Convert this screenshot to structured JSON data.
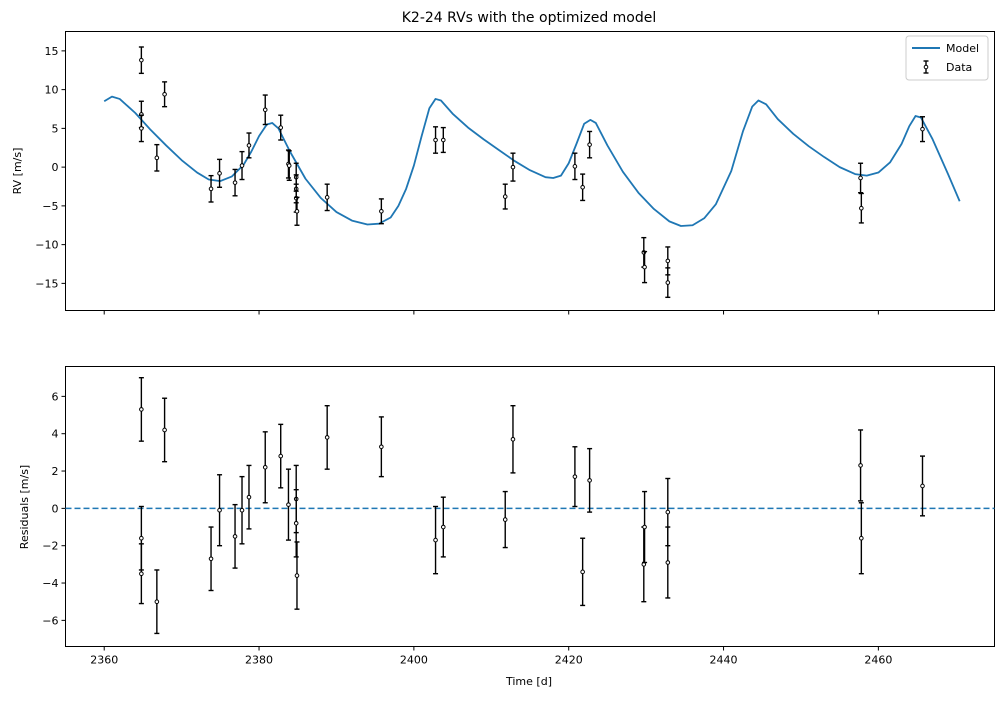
{
  "chart_data": [
    {
      "type": "line",
      "title": "K2-24 RVs with the optimized model",
      "xlabel": "",
      "ylabel": "RV [m/s]",
      "xlim": [
        2355,
        2475
      ],
      "ylim": [
        -18.5,
        17.5
      ],
      "x_ticks": [
        2360,
        2380,
        2400,
        2420,
        2440,
        2460
      ],
      "y_ticks": [
        15,
        10,
        5,
        0,
        -5,
        -10,
        -15
      ],
      "grid": false,
      "legend": {
        "placement": "top-right",
        "entries": [
          "Model",
          "Data"
        ]
      },
      "series": [
        {
          "name": "Model",
          "kind": "line",
          "color": "#1f77b4",
          "points": [
            [
              2360,
              8.5
            ],
            [
              2361,
              9.1
            ],
            [
              2362,
              8.8
            ],
            [
              2364,
              7.0
            ],
            [
              2366,
              4.8
            ],
            [
              2368,
              2.8
            ],
            [
              2370,
              0.9
            ],
            [
              2372,
              -0.7
            ],
            [
              2373.5,
              -1.6
            ],
            [
              2375,
              -1.8
            ],
            [
              2376.5,
              -1.2
            ],
            [
              2378,
              0.3
            ],
            [
              2379,
              2.0
            ],
            [
              2380,
              4.0
            ],
            [
              2381,
              5.5
            ],
            [
              2381.7,
              5.7
            ],
            [
              2382.5,
              5.0
            ],
            [
              2384,
              2.0
            ],
            [
              2386,
              -1.5
            ],
            [
              2388,
              -4.0
            ],
            [
              2390,
              -5.8
            ],
            [
              2392,
              -6.9
            ],
            [
              2394,
              -7.4
            ],
            [
              2395.5,
              -7.3
            ],
            [
              2397,
              -6.5
            ],
            [
              2398,
              -5.0
            ],
            [
              2399,
              -2.8
            ],
            [
              2400,
              0.2
            ],
            [
              2401,
              4.0
            ],
            [
              2402,
              7.6
            ],
            [
              2402.8,
              8.8
            ],
            [
              2403.5,
              8.6
            ],
            [
              2405,
              6.9
            ],
            [
              2407,
              5.1
            ],
            [
              2409,
              3.6
            ],
            [
              2411,
              2.2
            ],
            [
              2413,
              0.8
            ],
            [
              2415,
              -0.4
            ],
            [
              2417,
              -1.3
            ],
            [
              2418,
              -1.4
            ],
            [
              2419,
              -1.1
            ],
            [
              2420,
              0.5
            ],
            [
              2421,
              3.0
            ],
            [
              2422,
              5.6
            ],
            [
              2422.8,
              6.1
            ],
            [
              2423.5,
              5.7
            ],
            [
              2425,
              2.8
            ],
            [
              2427,
              -0.6
            ],
            [
              2429,
              -3.3
            ],
            [
              2431,
              -5.4
            ],
            [
              2433,
              -7.0
            ],
            [
              2434.5,
              -7.6
            ],
            [
              2436,
              -7.5
            ],
            [
              2437.5,
              -6.6
            ],
            [
              2439,
              -4.8
            ],
            [
              2441,
              -0.5
            ],
            [
              2442.5,
              4.6
            ],
            [
              2443.7,
              7.8
            ],
            [
              2444.5,
              8.6
            ],
            [
              2445.5,
              8.1
            ],
            [
              2447,
              6.2
            ],
            [
              2449,
              4.3
            ],
            [
              2451,
              2.7
            ],
            [
              2453,
              1.3
            ],
            [
              2455,
              0.0
            ],
            [
              2457,
              -0.9
            ],
            [
              2458.5,
              -1.1
            ],
            [
              2460,
              -0.7
            ],
            [
              2461.5,
              0.6
            ],
            [
              2463,
              3.0
            ],
            [
              2464,
              5.3
            ],
            [
              2464.8,
              6.6
            ],
            [
              2465.5,
              6.4
            ],
            [
              2467,
              3.6
            ],
            [
              2469,
              -0.9
            ],
            [
              2470.5,
              -4.4
            ]
          ]
        },
        {
          "name": "Data",
          "kind": "errorbar",
          "color": "#000000",
          "points": [
            [
              2364.8,
              13.8,
              1.7
            ],
            [
              2364.8,
              6.8,
              1.7
            ],
            [
              2364.8,
              5.0,
              1.7
            ],
            [
              2366.8,
              1.2,
              1.7
            ],
            [
              2367.8,
              9.4,
              1.6
            ],
            [
              2373.8,
              -2.8,
              1.7
            ],
            [
              2374.9,
              -0.8,
              1.8
            ],
            [
              2376.9,
              -2.0,
              1.7
            ],
            [
              2377.8,
              0.2,
              1.8
            ],
            [
              2378.7,
              2.8,
              1.6
            ],
            [
              2380.8,
              7.4,
              1.9
            ],
            [
              2382.8,
              5.1,
              1.6
            ],
            [
              2383.8,
              0.4,
              1.8
            ],
            [
              2383.9,
              0.2,
              1.9
            ],
            [
              2384.8,
              -1.3,
              1.8
            ],
            [
              2384.8,
              -2.8,
              1.8
            ],
            [
              2384.8,
              -4.0,
              1.8
            ],
            [
              2384.9,
              -5.7,
              1.8
            ],
            [
              2388.8,
              -3.9,
              1.7
            ],
            [
              2395.8,
              -5.7,
              1.6
            ],
            [
              2402.8,
              3.5,
              1.7
            ],
            [
              2403.8,
              3.5,
              1.6
            ],
            [
              2411.8,
              -3.8,
              1.6
            ],
            [
              2412.8,
              0.0,
              1.8
            ],
            [
              2420.8,
              0.1,
              1.7
            ],
            [
              2421.8,
              -2.6,
              1.7
            ],
            [
              2422.7,
              2.9,
              1.7
            ],
            [
              2429.7,
              -11.0,
              1.9
            ],
            [
              2429.8,
              -12.9,
              2.0
            ],
            [
              2432.8,
              -12.1,
              1.8
            ],
            [
              2432.8,
              -14.9,
              1.9
            ],
            [
              2457.7,
              -1.4,
              1.9
            ],
            [
              2457.8,
              -5.3,
              1.9
            ],
            [
              2465.7,
              4.9,
              1.6
            ]
          ]
        }
      ]
    },
    {
      "type": "scatter",
      "title": "",
      "xlabel": "Time [d]",
      "ylabel": "Residuals [m/s]",
      "xlim": [
        2355,
        2475
      ],
      "ylim": [
        -7.4,
        7.6
      ],
      "x_ticks": [
        2360,
        2380,
        2400,
        2420,
        2440,
        2460
      ],
      "y_ticks": [
        6,
        4,
        2,
        0,
        -2,
        -4,
        -6
      ],
      "grid": false,
      "reference_line": {
        "y": 0,
        "style": "dashed",
        "color": "#1f77b4"
      },
      "series": [
        {
          "kind": "errorbar",
          "color": "#000000",
          "points": [
            [
              2364.8,
              5.3,
              1.7
            ],
            [
              2364.8,
              -1.6,
              1.7
            ],
            [
              2364.8,
              -3.5,
              1.6
            ],
            [
              2366.8,
              -5.0,
              1.7
            ],
            [
              2367.8,
              4.2,
              1.7
            ],
            [
              2373.8,
              -2.7,
              1.7
            ],
            [
              2374.9,
              -0.1,
              1.9
            ],
            [
              2376.9,
              -1.5,
              1.7
            ],
            [
              2377.8,
              -0.1,
              1.8
            ],
            [
              2378.7,
              0.6,
              1.7
            ],
            [
              2380.8,
              2.2,
              1.9
            ],
            [
              2382.8,
              2.8,
              1.7
            ],
            [
              2383.8,
              0.2,
              1.9
            ],
            [
              2384.8,
              0.5,
              1.8
            ],
            [
              2384.8,
              -0.8,
              1.8
            ],
            [
              2384.9,
              -3.6,
              1.8
            ],
            [
              2388.8,
              3.8,
              1.7
            ],
            [
              2395.8,
              3.3,
              1.6
            ],
            [
              2402.8,
              -1.7,
              1.8
            ],
            [
              2403.8,
              -1.0,
              1.6
            ],
            [
              2411.8,
              -0.6,
              1.5
            ],
            [
              2412.8,
              3.7,
              1.8
            ],
            [
              2420.8,
              1.7,
              1.6
            ],
            [
              2421.8,
              -3.4,
              1.8
            ],
            [
              2422.7,
              1.5,
              1.7
            ],
            [
              2429.7,
              -3.0,
              2.0
            ],
            [
              2429.8,
              -1.0,
              1.9
            ],
            [
              2432.8,
              -0.2,
              1.8
            ],
            [
              2432.8,
              -2.9,
              1.9
            ],
            [
              2457.7,
              2.3,
              1.9
            ],
            [
              2457.8,
              -1.6,
              1.9
            ],
            [
              2465.7,
              1.2,
              1.6
            ]
          ]
        }
      ]
    }
  ]
}
